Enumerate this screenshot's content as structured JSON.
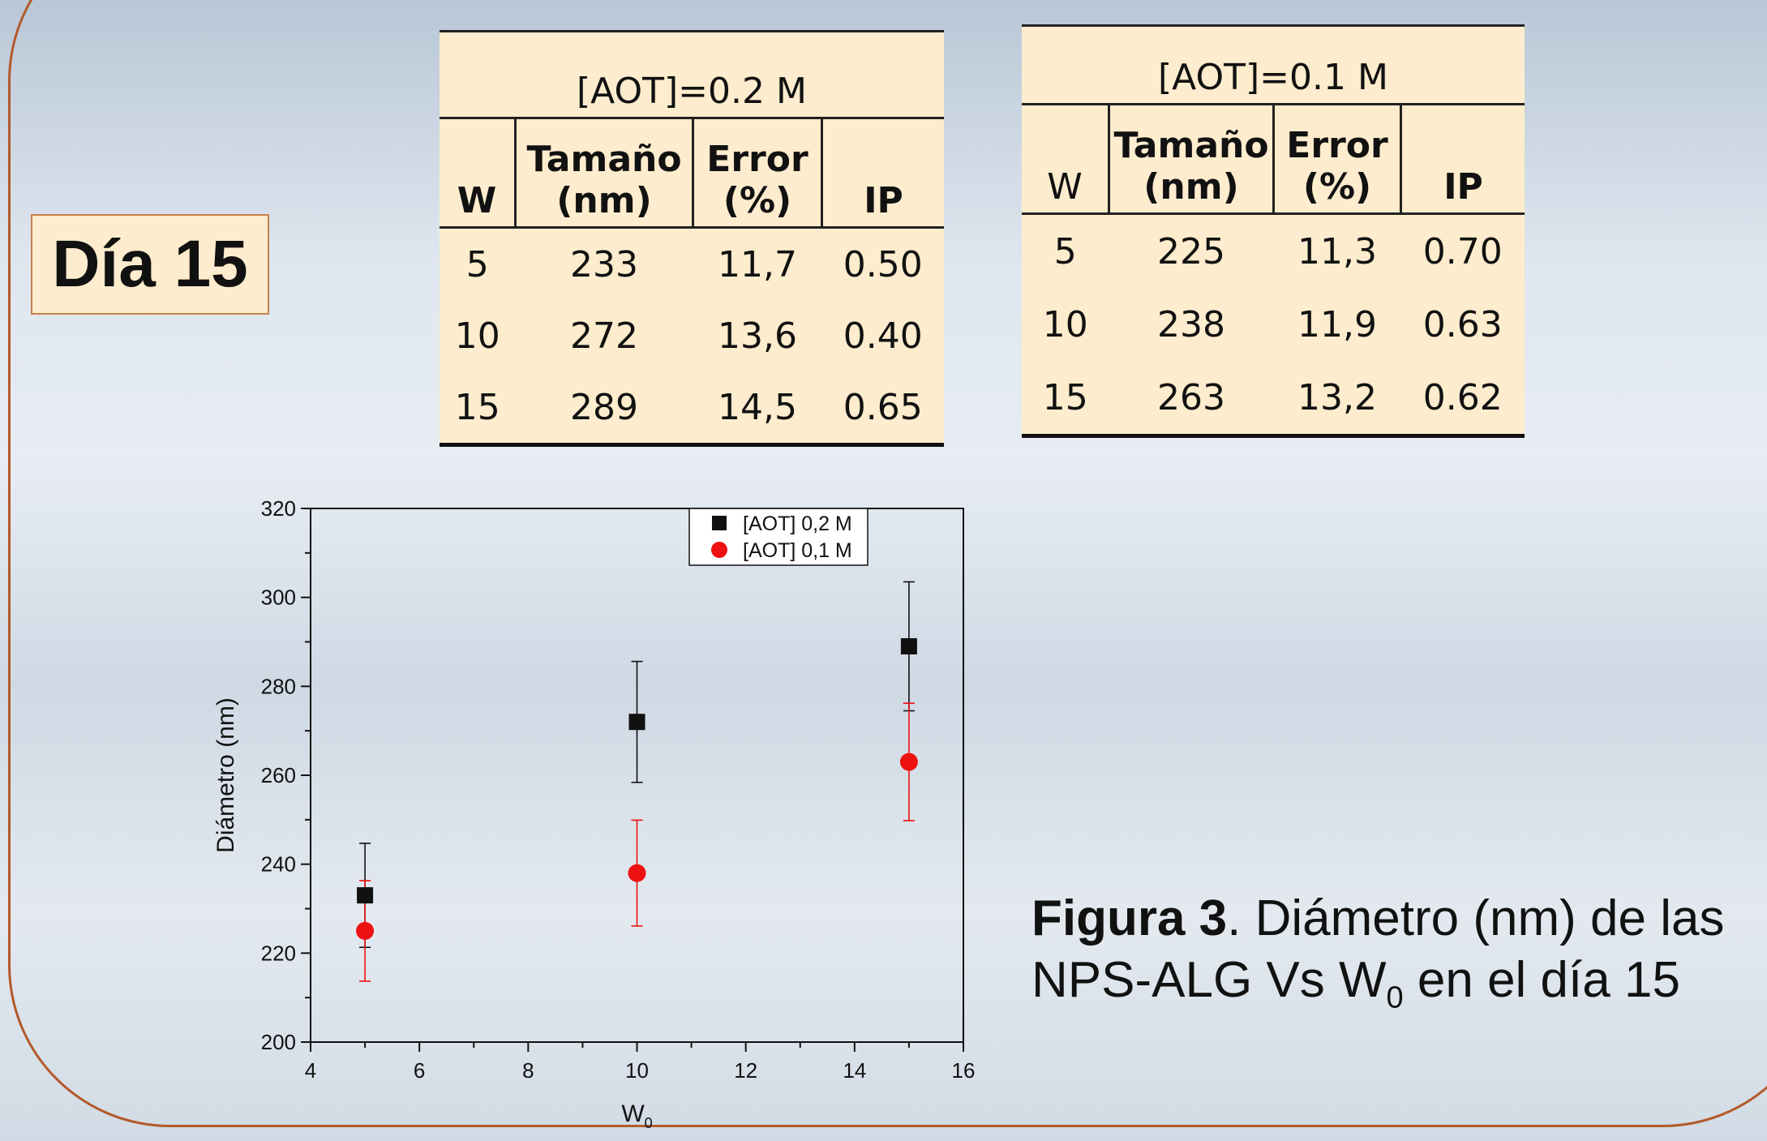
{
  "day_label": "Día 15",
  "table_02": {
    "caption": "[AOT]=0.2 M",
    "headers": [
      "W",
      "Tamaño (nm)",
      "Error (%)",
      "IP"
    ],
    "rows": [
      [
        "5",
        "233",
        "11,7",
        "0.50"
      ],
      [
        "10",
        "272",
        "13,6",
        "0.40"
      ],
      [
        "15",
        "289",
        "14,5",
        "0.65"
      ]
    ]
  },
  "table_01": {
    "caption": "[AOT]=0.1 M",
    "headers": [
      "W",
      "Tamaño (nm)",
      "Error (%)",
      "IP"
    ],
    "rows": [
      [
        "5",
        "225",
        "11,3",
        "0.70"
      ],
      [
        "10",
        "238",
        "11,9",
        "0.63"
      ],
      [
        "15",
        "263",
        "13,2",
        "0.62"
      ]
    ]
  },
  "figure_caption": {
    "bold": "Figura 3",
    "text1": ". Diámetro (nm) de las NPS-ALG Vs W",
    "sub": "0",
    "text2": " en el día 15"
  },
  "chart_data": {
    "type": "scatter",
    "xlabel": "W",
    "xlabel_sub": "0",
    "ylabel": "Diámetro (nm)",
    "xlim": [
      4,
      16
    ],
    "ylim": [
      200,
      320
    ],
    "xticks": [
      4,
      6,
      8,
      10,
      12,
      14,
      16
    ],
    "yticks": [
      200,
      220,
      240,
      260,
      280,
      300,
      320
    ],
    "legend_position": "top-right",
    "series": [
      {
        "name": "[AOT] 0,2 M",
        "marker": "square",
        "color": "#111111",
        "x": [
          5,
          10,
          15
        ],
        "y": [
          233,
          272,
          289
        ],
        "err": [
          11.7,
          13.6,
          14.5
        ]
      },
      {
        "name": "[AOT] 0,1 M",
        "marker": "circle",
        "color": "#ee1111",
        "x": [
          5,
          10,
          15
        ],
        "y": [
          225,
          238,
          263
        ],
        "err": [
          11.3,
          11.9,
          13.2
        ]
      }
    ]
  }
}
